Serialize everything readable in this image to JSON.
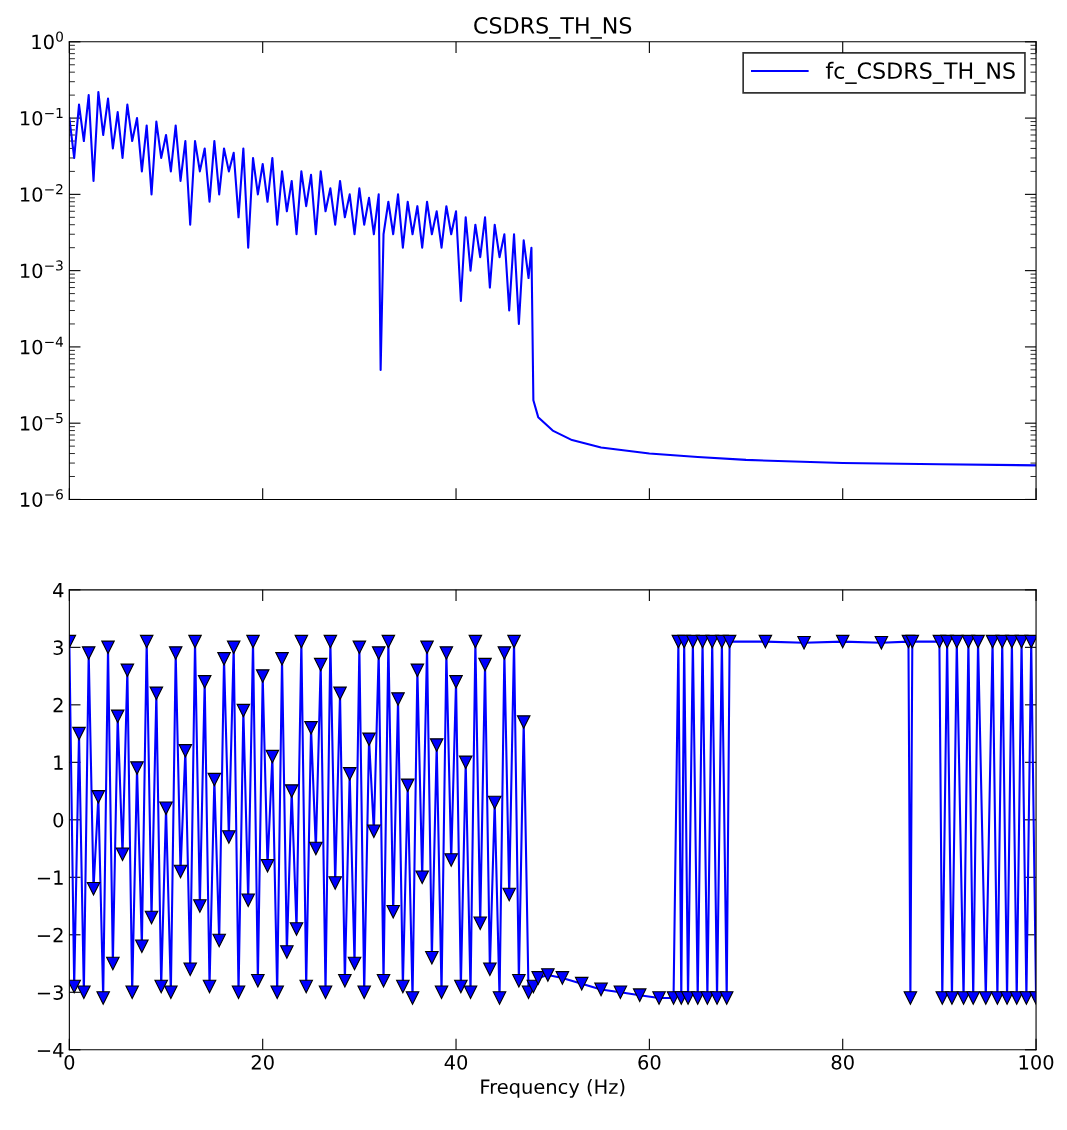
{
  "chart_data": [
    {
      "type": "line",
      "title": "CSDRS_TH_NS",
      "log": "y",
      "legend": "top right",
      "tick_labels": "y",
      "grid": false,
      "xlim": [
        0,
        100
      ],
      "xticks": [
        0,
        20,
        40,
        60,
        80,
        100
      ],
      "ylim": [
        1e-06,
        1
      ],
      "yticks": [
        {
          "value": 1e-06,
          "label": "10$^{−6}$"
        },
        {
          "value": 1e-05,
          "label": "10$^{−5}$"
        },
        {
          "value": 0.0001,
          "label": "10$^{−4}$"
        },
        {
          "value": 0.001,
          "label": "10$^{−3}$"
        },
        {
          "value": 0.01,
          "label": "10$^{−2}$"
        },
        {
          "value": 0.1,
          "label": "10$^{−1}$"
        },
        {
          "value": 1,
          "label": "10$^{0}$"
        }
      ],
      "series": [
        {
          "name": "fc_CSDRS_TH_NS",
          "color": "#0000ff",
          "x": [
            0,
            0.5,
            1,
            1.5,
            2,
            2.5,
            3,
            3.5,
            4,
            4.5,
            5,
            5.5,
            6,
            6.5,
            7,
            7.5,
            8,
            8.5,
            9,
            9.5,
            10,
            10.5,
            11,
            11.5,
            12,
            12.5,
            13,
            13.5,
            14,
            14.5,
            15,
            15.5,
            16,
            16.5,
            17,
            17.5,
            18,
            18.5,
            19,
            19.5,
            20,
            20.5,
            21,
            21.5,
            22,
            22.5,
            23,
            23.5,
            24,
            24.5,
            25,
            25.5,
            26,
            26.5,
            27,
            27.5,
            28,
            28.5,
            29,
            29.5,
            30,
            30.5,
            31,
            31.5,
            32,
            32.2,
            32.5,
            33,
            33.5,
            34,
            34.5,
            35,
            35.5,
            36,
            36.5,
            37,
            37.5,
            38,
            38.5,
            39,
            39.5,
            40,
            40.5,
            41,
            41.5,
            42,
            42.5,
            43,
            43.5,
            44,
            44.5,
            45,
            45.5,
            46,
            46.5,
            47,
            47.5,
            47.8,
            48,
            48.5,
            50,
            52,
            55,
            60,
            65,
            70,
            80,
            90,
            100
          ],
          "values": [
            0.1,
            0.03,
            0.15,
            0.05,
            0.2,
            0.015,
            0.22,
            0.06,
            0.18,
            0.04,
            0.12,
            0.03,
            0.15,
            0.05,
            0.1,
            0.02,
            0.08,
            0.01,
            0.09,
            0.03,
            0.06,
            0.02,
            0.08,
            0.015,
            0.05,
            0.004,
            0.05,
            0.02,
            0.04,
            0.008,
            0.05,
            0.01,
            0.04,
            0.02,
            0.035,
            0.005,
            0.04,
            0.002,
            0.03,
            0.01,
            0.025,
            0.008,
            0.03,
            0.004,
            0.02,
            0.006,
            0.015,
            0.003,
            0.02,
            0.007,
            0.018,
            0.003,
            0.02,
            0.006,
            0.012,
            0.004,
            0.015,
            0.005,
            0.01,
            0.003,
            0.012,
            0.004,
            0.009,
            0.003,
            0.01,
            5e-05,
            0.003,
            0.008,
            0.003,
            0.01,
            0.002,
            0.008,
            0.003,
            0.007,
            0.002,
            0.008,
            0.003,
            0.006,
            0.002,
            0.007,
            0.003,
            0.006,
            0.0004,
            0.005,
            0.001,
            0.004,
            0.0015,
            0.005,
            0.0006,
            0.004,
            0.0015,
            0.003,
            0.0003,
            0.003,
            0.0002,
            0.0025,
            0.0008,
            0.002,
            2e-05,
            1.2e-05,
            8e-06,
            6e-06,
            4.8e-06,
            4e-06,
            3.6e-06,
            3.3e-06,
            3e-06,
            2.9e-06,
            2.8e-06
          ]
        }
      ]
    },
    {
      "type": "line",
      "xlabel": "Frequency (Hz)",
      "marker": "triangle",
      "grid": false,
      "xlim": [
        0,
        100
      ],
      "xticks": [
        0,
        20,
        40,
        60,
        80,
        100
      ],
      "ylim": [
        -4,
        4
      ],
      "yticks": [
        {
          "value": -4,
          "label": "−4"
        },
        {
          "value": -3,
          "label": "−3"
        },
        {
          "value": -2,
          "label": "−2"
        },
        {
          "value": -1,
          "label": "−1"
        },
        0,
        1,
        2,
        3,
        4
      ],
      "series": [
        {
          "color": "#0000ff",
          "x": [
            0,
            0.5,
            1,
            1.5,
            2,
            2.5,
            3,
            3.5,
            4,
            4.5,
            5,
            5.5,
            6,
            6.5,
            7,
            7.5,
            8,
            8.5,
            9,
            9.5,
            10,
            10.5,
            11,
            11.5,
            12,
            12.5,
            13,
            13.5,
            14,
            14.5,
            15,
            15.5,
            16,
            16.5,
            17,
            17.5,
            18,
            18.5,
            19,
            19.5,
            20,
            20.5,
            21,
            21.5,
            22,
            22.5,
            23,
            23.5,
            24,
            24.5,
            25,
            25.5,
            26,
            26.5,
            27,
            27.5,
            28,
            28.5,
            29,
            29.5,
            30,
            30.5,
            31,
            31.5,
            32,
            32.5,
            33,
            33.5,
            34,
            34.5,
            35,
            35.5,
            36,
            36.5,
            37,
            37.5,
            38,
            38.5,
            39,
            39.5,
            40,
            40.5,
            41,
            41.5,
            42,
            42.5,
            43,
            43.5,
            44,
            44.5,
            45,
            45.5,
            46,
            46.5,
            47,
            47.5,
            48,
            48.5,
            49.5,
            51,
            53,
            55,
            57,
            59,
            61,
            62.5,
            63,
            63.3,
            63.6,
            64,
            64.5,
            65,
            65.5,
            66,
            66.5,
            67,
            67.5,
            68,
            68.3,
            72,
            76,
            80,
            84,
            86.8,
            87,
            87.2,
            90,
            90.3,
            90.8,
            91.3,
            91.8,
            92.5,
            93,
            93.5,
            94,
            94.8,
            95.5,
            96,
            96.5,
            97,
            97.5,
            98,
            98.5,
            99,
            99.5,
            100
          ],
          "values": [
            3.1,
            -2.9,
            1.5,
            -3.0,
            2.9,
            -1.2,
            0.4,
            -3.1,
            3.0,
            -2.5,
            1.8,
            -0.6,
            2.6,
            -3.0,
            0.9,
            -2.2,
            3.1,
            -1.7,
            2.2,
            -2.9,
            0.2,
            -3.0,
            2.9,
            -0.9,
            1.2,
            -2.6,
            3.1,
            -1.5,
            2.4,
            -2.9,
            0.7,
            -2.1,
            2.8,
            -0.3,
            3.0,
            -3.0,
            1.9,
            -1.4,
            3.1,
            -2.8,
            2.5,
            -0.8,
            1.1,
            -3.0,
            2.8,
            -2.3,
            0.5,
            -1.9,
            3.1,
            -2.9,
            1.6,
            -0.5,
            2.7,
            -3.0,
            3.1,
            -1.1,
            2.2,
            -2.8,
            0.8,
            -2.5,
            3.0,
            -3.0,
            1.4,
            -0.2,
            2.9,
            -2.8,
            3.1,
            -1.6,
            2.1,
            -2.9,
            0.6,
            -3.1,
            2.6,
            -1.0,
            3.0,
            -2.4,
            1.3,
            -3.0,
            2.9,
            -0.7,
            2.4,
            -2.9,
            1.0,
            -3.0,
            3.1,
            -1.8,
            2.7,
            -2.6,
            0.3,
            -3.1,
            2.9,
            -1.3,
            3.1,
            -2.8,
            1.7,
            -3.0,
            -2.9,
            -2.75,
            -2.7,
            -2.75,
            -2.85,
            -2.95,
            -3.0,
            -3.05,
            -3.1,
            -3.1,
            3.1,
            -3.1,
            3.1,
            -3.1,
            3.1,
            -3.1,
            3.1,
            -3.1,
            3.1,
            -3.1,
            3.1,
            -3.1,
            3.1,
            3.1,
            3.08,
            3.1,
            3.08,
            3.1,
            -3.1,
            3.1,
            3.1,
            -3.1,
            3.1,
            -3.1,
            3.1,
            -3.1,
            3.1,
            -3.1,
            3.1,
            -3.1,
            3.1,
            -3.1,
            3.1,
            -3.1,
            3.1,
            -3.1,
            3.1,
            -3.1,
            3.1,
            -3.1
          ]
        }
      ]
    }
  ]
}
